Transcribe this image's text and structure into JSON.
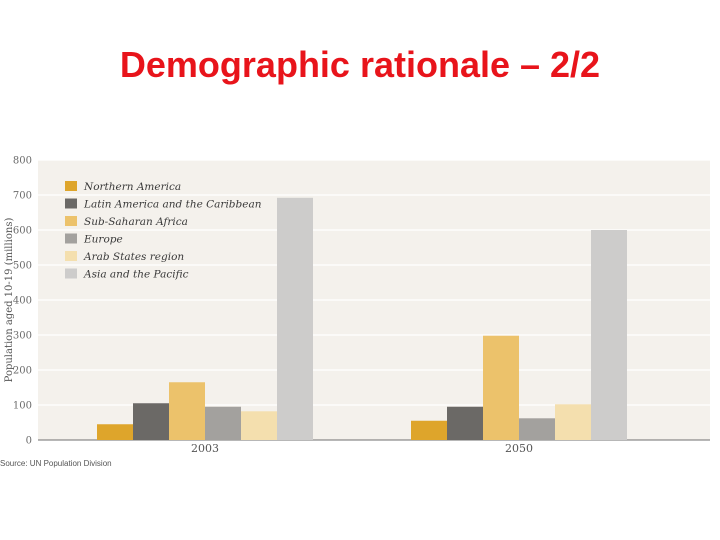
{
  "slide": {
    "title": "Demographic rationale – 2/2"
  },
  "chart_data": {
    "type": "bar",
    "categories": [
      "2003",
      "2050"
    ],
    "series": [
      {
        "name": "Northern America",
        "color": "#dea52b",
        "values": [
          45,
          55
        ]
      },
      {
        "name": "Latin America and the Caribbean",
        "color": "#6b6966",
        "values": [
          105,
          95
        ]
      },
      {
        "name": "Sub-Saharan Africa",
        "color": "#ecc26b",
        "values": [
          165,
          298
        ]
      },
      {
        "name": "Europe",
        "color": "#a3a19e",
        "values": [
          95,
          62
        ]
      },
      {
        "name": "Arab States region",
        "color": "#f4dfae",
        "values": [
          82,
          102
        ]
      },
      {
        "name": "Asia and the Pacific",
        "color": "#cdcccb",
        "values": [
          692,
          600
        ]
      }
    ],
    "ylabel": "Population aged 10-19 (millions)",
    "ylim": [
      0,
      800
    ],
    "yticks": [
      "0",
      "100",
      "200",
      "300",
      "400",
      "500",
      "600",
      "700",
      "800"
    ],
    "grid": true,
    "background": "#f4f1ec",
    "legend_position": "top-left",
    "source": "Source: UN Population Division"
  }
}
